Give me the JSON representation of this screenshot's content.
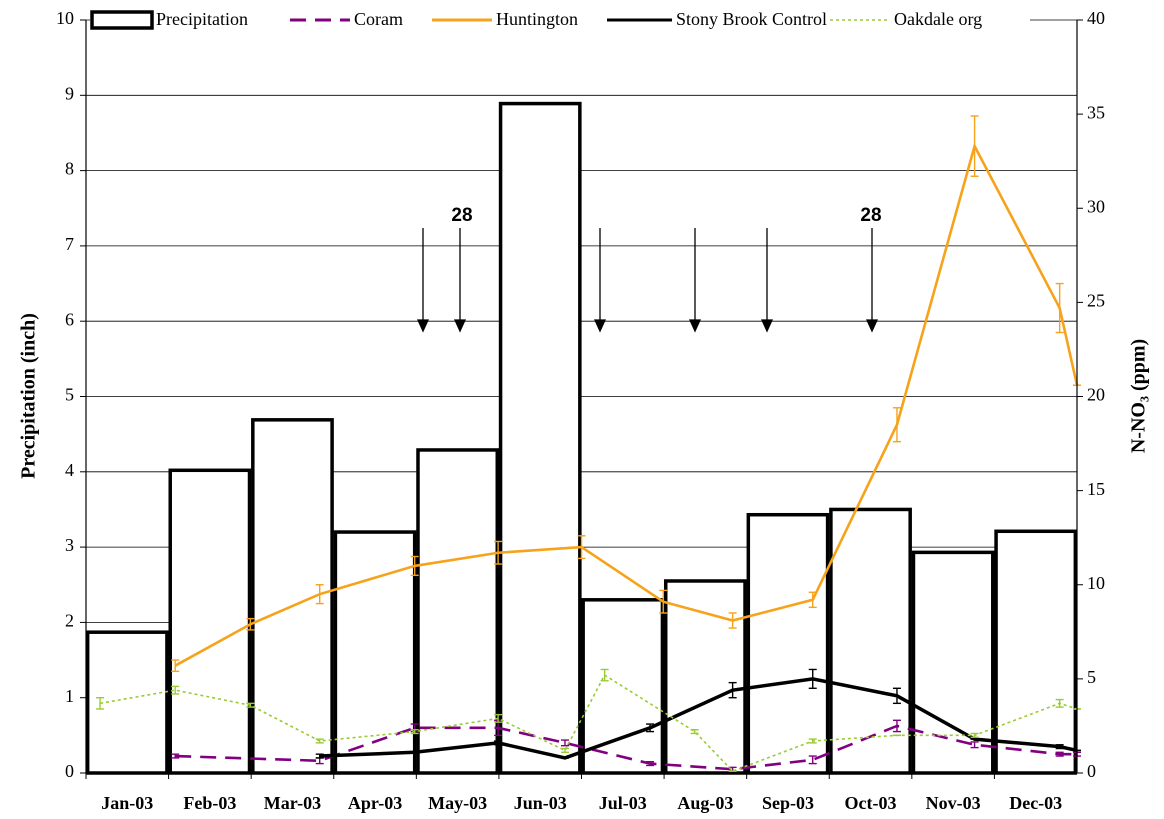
{
  "chart_data": {
    "type": "bar",
    "y_label": "Precipitation (inch)",
    "y2_label": "N-NO₃ (ppm)",
    "categories": [
      "Jan-03",
      "Feb-03",
      "Mar-03",
      "Apr-03",
      "May-03",
      "Jun-03",
      "Jul-03",
      "Aug-03",
      "Sep-03",
      "Oct-03",
      "Nov-03",
      "Dec-03"
    ],
    "ylim": [
      0,
      10
    ],
    "yticks": [
      0,
      1,
      2,
      3,
      4,
      5,
      6,
      7,
      8,
      9,
      10
    ],
    "y2lim": [
      0,
      40
    ],
    "y2ticks": [
      0,
      5,
      10,
      15,
      20,
      25,
      30,
      35,
      40
    ],
    "grid": true,
    "annotations": [
      "28",
      "28"
    ],
    "series": [
      {
        "name": "Precipitation",
        "type": "bar",
        "color": "#000000",
        "values": [
          1.87,
          4.02,
          4.69,
          3.2,
          4.29,
          8.89,
          2.3,
          2.55,
          3.43,
          3.5,
          2.93,
          3.21
        ]
      },
      {
        "name": "Coram",
        "type": "line",
        "axis": "y2",
        "color": "#800080",
        "dash": "dashed",
        "x": [
          1.08,
          2.83,
          3.98,
          4.99,
          5.8,
          6.83,
          7.83,
          8.8,
          9.82,
          10.76,
          11.79,
          12.0
        ],
        "values": [
          0.9,
          0.65,
          2.4,
          2.4,
          1.6,
          0.5,
          0.2,
          0.7,
          2.5,
          1.5,
          1.0,
          1.0
        ],
        "errors": [
          0.1,
          0.15,
          0.2,
          0.4,
          0.15,
          0.1,
          0.1,
          0.2,
          0.3,
          0.15,
          0.1,
          0.1
        ]
      },
      {
        "name": "Huntington",
        "type": "line",
        "axis": "y2",
        "color": "#f7a21b",
        "dash": "solid",
        "x": [
          1.08,
          1.99,
          2.83,
          3.98,
          4.99,
          6.0,
          6.99,
          7.83,
          8.8,
          9.82,
          10.76,
          11.79,
          12.0
        ],
        "values": [
          5.7,
          7.9,
          9.5,
          11.0,
          11.7,
          12.0,
          9.1,
          8.1,
          9.2,
          18.5,
          33.3,
          24.7,
          20.6
        ],
        "errors": [
          0.3,
          0.3,
          0.5,
          0.5,
          0.6,
          0.6,
          0.6,
          0.4,
          0.4,
          0.9,
          1.6,
          1.3,
          0.0
        ]
      },
      {
        "name": "Stony Brook Control",
        "type": "line",
        "axis": "y2",
        "color": "#000000",
        "dash": "solid",
        "x": [
          2.83,
          3.98,
          4.99,
          5.8,
          6.83,
          7.83,
          8.8,
          9.82,
          10.76,
          11.79,
          12.0
        ],
        "values": [
          0.9,
          1.1,
          1.6,
          0.8,
          2.4,
          4.4,
          5.0,
          4.1,
          1.8,
          1.4,
          1.2
        ],
        "errors": [
          0.1,
          0.0,
          0.1,
          0.0,
          0.2,
          0.4,
          0.5,
          0.4,
          0.0,
          0.1,
          0.0
        ]
      },
      {
        "name": "Oakdale org",
        "type": "line",
        "axis": "y2",
        "color": "#99cc33",
        "dash": "dotted",
        "x": [
          0.17,
          1.08,
          1.99,
          2.83,
          3.98,
          4.99,
          5.8,
          6.28,
          7.37,
          7.83,
          8.8,
          9.82,
          10.76,
          11.79,
          12.0
        ],
        "values": [
          3.7,
          4.4,
          3.6,
          1.7,
          2.2,
          2.9,
          1.2,
          5.2,
          2.2,
          0.1,
          1.7,
          2.0,
          2.0,
          3.7,
          3.4
        ],
        "errors": [
          0.3,
          0.2,
          0.1,
          0.1,
          0.1,
          0.2,
          0.1,
          0.3,
          0.1,
          0.0,
          0.1,
          0.0,
          0.1,
          0.2,
          0.0
        ]
      }
    ]
  }
}
